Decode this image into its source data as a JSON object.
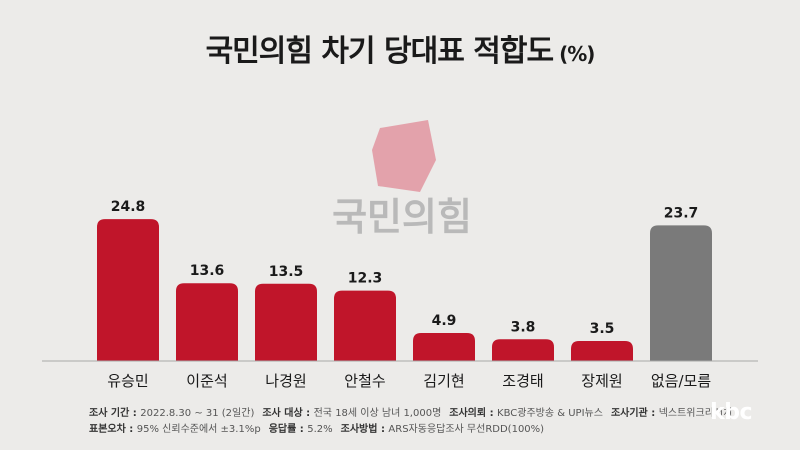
{
  "chart_data": {
    "type": "bar",
    "title": "국민의힘 차기 당대표 적합도",
    "unit": "(%)",
    "categories": [
      "유승민",
      "이준석",
      "나경원",
      "안철수",
      "김기현",
      "조경태",
      "장제원",
      "없음/모름"
    ],
    "values": [
      24.8,
      13.6,
      13.5,
      12.3,
      4.9,
      3.8,
      3.5,
      23.7
    ],
    "value_labels": [
      "24.8",
      "13.6",
      "13.5",
      "12.3",
      "4.9",
      "3.8",
      "3.5",
      "23.7"
    ],
    "colors": [
      "#c0152a",
      "#c0152a",
      "#c0152a",
      "#c0152a",
      "#c0152a",
      "#c0152a",
      "#c0152a",
      "#7a7a7a"
    ],
    "ylim": [
      0,
      25
    ],
    "grid": false,
    "legend": "none"
  },
  "watermark": {
    "text": "국민의힘",
    "icon": "party-logo-icon"
  },
  "footer": {
    "line1": [
      {
        "label": "조사 기간 :",
        "value": "2022.8.30 ~ 31 (2일간)"
      },
      {
        "label": "조사 대상 :",
        "value": "전국 18세 이상 남녀 1,000명"
      },
      {
        "label": "조사의뢰 :",
        "value": "KBC광주방송 & UPI뉴스"
      },
      {
        "label": "조사기관 :",
        "value": "넥스트위크리서치"
      }
    ],
    "line2": [
      {
        "label": "표본오차 :",
        "value": "95% 신뢰수준에서 ±3.1%p"
      },
      {
        "label": "응답률 :",
        "value": "5.2%"
      },
      {
        "label": "조사방법 :",
        "value": "ARS자동응답조사 무선RDD(100%)"
      }
    ]
  },
  "brand": {
    "text": "kbc"
  }
}
